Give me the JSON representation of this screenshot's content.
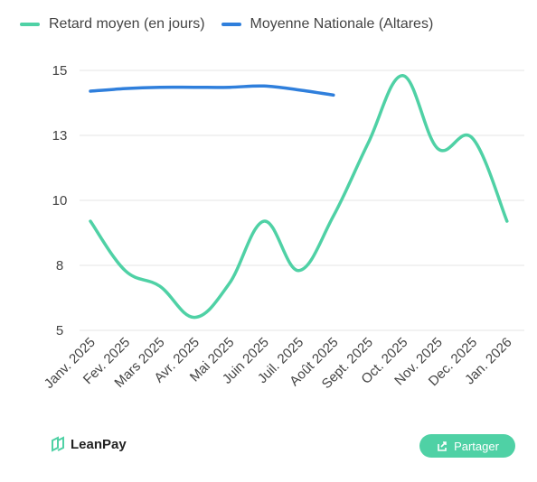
{
  "legend": {
    "series1_label": "Retard moyen (en jours)",
    "series2_label": "Moyenne Nationale (Altares)"
  },
  "colors": {
    "series1": "#4fd1a5",
    "series2": "#2f7fdc",
    "grid": "#e6e6e6",
    "tick_text": "#444444"
  },
  "chart_data": {
    "type": "line",
    "categories": [
      "Janv. 2025",
      "Fev. 2025",
      "Mars 2025",
      "Avr. 2025",
      "Mai 2025",
      "Juin 2025",
      "Juil. 2025",
      "Août 2025",
      "Sept. 2025",
      "Oct. 2025",
      "Nov. 2025",
      "Dec. 2025",
      "Jan. 2026"
    ],
    "series": [
      {
        "name": "Retard moyen (en jours)",
        "values": [
          9.2,
          7.3,
          6.7,
          5.5,
          6.8,
          9.2,
          7.3,
          9.4,
          12.2,
          14.8,
          12.0,
          12.4,
          9.2
        ]
      },
      {
        "name": "Moyenne Nationale (Altares)",
        "values": [
          14.2,
          14.3,
          14.35,
          14.35,
          14.35,
          14.4,
          14.25,
          14.05,
          null,
          null,
          null,
          null,
          null
        ]
      }
    ],
    "yticks": [
      "15",
      "13",
      "10",
      "8",
      "5"
    ],
    "ylim": [
      5,
      15
    ],
    "grid": true,
    "legend_position": "top-left"
  },
  "footer": {
    "brand": "LeanPay",
    "share_label": "Partager"
  }
}
